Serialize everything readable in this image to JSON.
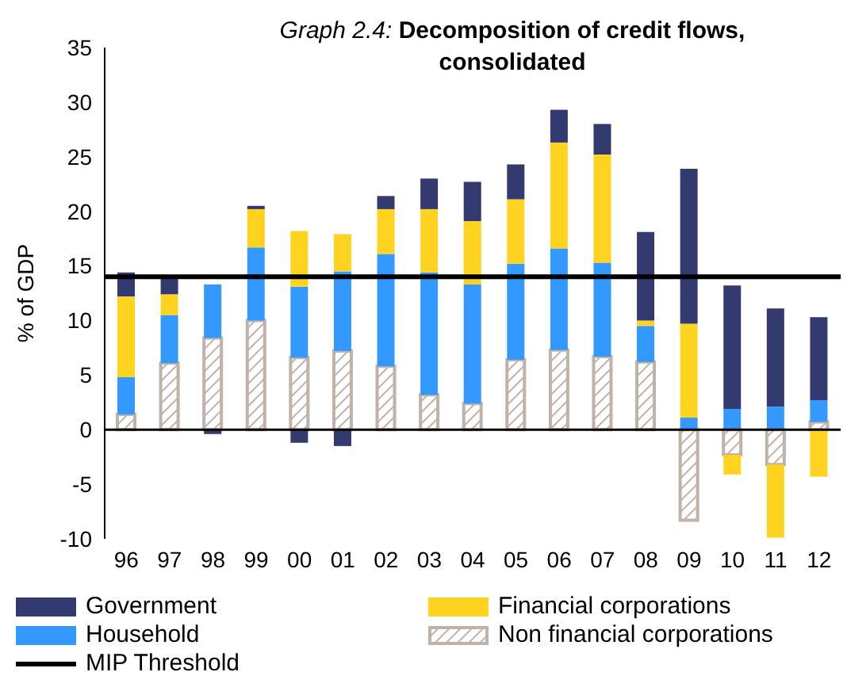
{
  "chart_data": {
    "type": "bar",
    "stacked": true,
    "title": "Graph 2.4: Decomposition of credit flows, consolidated",
    "ylabel": "% of GDP",
    "categories": [
      "96",
      "97",
      "98",
      "99",
      "00",
      "01",
      "02",
      "03",
      "04",
      "05",
      "06",
      "07",
      "08",
      "09",
      "10",
      "11",
      "12"
    ],
    "series": [
      {
        "name": "Non financial corporations",
        "color": "#bfb2a9",
        "values": [
          1.4,
          6.1,
          8.4,
          10,
          6.6,
          7.2,
          5.8,
          3.2,
          2.4,
          6.4,
          7.3,
          6.7,
          6.2,
          -8.3,
          -2.3,
          -3.2,
          0.7
        ]
      },
      {
        "name": "Household",
        "color": "#3399ff",
        "values": [
          3.4,
          4.4,
          4.9,
          6.7,
          6.5,
          7.3,
          10.3,
          11.2,
          10.9,
          8.8,
          9.3,
          8.6,
          3.3,
          1.1,
          1.9,
          2.1,
          2
        ]
      },
      {
        "name": "Financial corporations",
        "color": "#ffd320",
        "values": [
          7.4,
          1.9,
          null,
          3.5,
          5.1,
          3.4,
          4.1,
          5.8,
          5.8,
          5.9,
          9.7,
          9.9,
          0.5,
          8.6,
          -1.8,
          -6.7,
          -4.3
        ]
      },
      {
        "name": "Government",
        "color": "#333a70",
        "values": [
          2.2,
          1.6,
          -0.4,
          0.3,
          -1.2,
          -1.5,
          1.2,
          2.8,
          3.6,
          3.2,
          3,
          2.8,
          8.1,
          14.2,
          11.3,
          9,
          7.6
        ]
      }
    ],
    "ylim": [
      -10,
      35
    ],
    "yticks": [
      -10,
      -5,
      0,
      5,
      10,
      15,
      20,
      25,
      30,
      35
    ],
    "legend": "bottom",
    "ref_lines": [
      {
        "axis": "y",
        "value": 14,
        "label": "MIP Threshold",
        "color": "#000000"
      }
    ]
  }
}
